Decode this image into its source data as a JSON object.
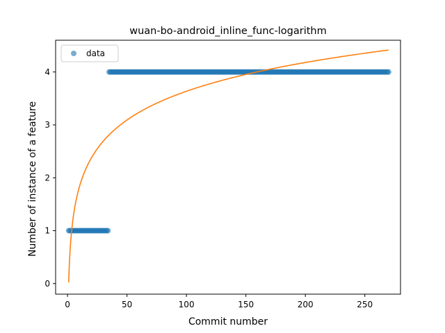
{
  "chart_data": {
    "type": "scatter",
    "title": "wuan-bo-android_inline_func-logarithm",
    "xlabel": "Commit number",
    "ylabel": "Number of instance of a feature",
    "xlim": [
      -10,
      280
    ],
    "ylim": [
      -0.2,
      4.6
    ],
    "xticks": [
      0,
      50,
      100,
      150,
      200,
      250
    ],
    "yticks": [
      0,
      1,
      2,
      3,
      4
    ],
    "grid": false,
    "legend_position": "upper-left",
    "series": [
      {
        "name": "data",
        "kind": "scatter",
        "color": "#1f77b4",
        "segments": [
          {
            "x_start": 1,
            "x_end": 34,
            "y": 1
          },
          {
            "x_start": 35,
            "x_end": 270,
            "y": 4
          }
        ]
      },
      {
        "kind": "line",
        "color": "#ff7f0e",
        "model": "logarithmic",
        "points": [
          [
            1,
            0
          ],
          [
            5,
            1.3
          ],
          [
            10,
            1.9
          ],
          [
            25,
            2.5
          ],
          [
            50,
            3.05
          ],
          [
            100,
            3.65
          ],
          [
            150,
            3.95
          ],
          [
            200,
            4.2
          ],
          [
            270,
            4.41
          ]
        ]
      }
    ]
  }
}
